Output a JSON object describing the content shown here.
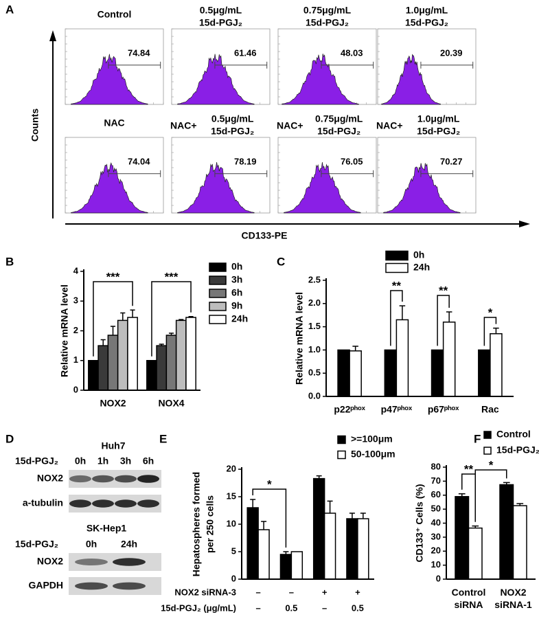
{
  "panel_A": {
    "label": "A",
    "y_axis_label": "Counts",
    "x_axis_label": "CD133-PE",
    "histograms": [
      {
        "title": [
          "Control"
        ],
        "value": 74.84
      },
      {
        "title": [
          "0.5μg/mL",
          "15d-PGJ₂"
        ],
        "value": 61.46
      },
      {
        "title": [
          "0.75μg/mL",
          "15d-PGJ₂"
        ],
        "value": 48.03
      },
      {
        "title": [
          "1.0μg/mL",
          "15d-PGJ₂"
        ],
        "value": 20.39
      },
      {
        "title": [
          "NAC"
        ],
        "value": 74.04
      },
      {
        "prefix": "NAC+",
        "title": [
          "0.5μg/mL",
          "15d-PGJ₂"
        ],
        "value": 78.19
      },
      {
        "prefix": "NAC+",
        "title": [
          "0.75μg/mL",
          "15d-PGJ₂"
        ],
        "value": 76.05
      },
      {
        "prefix": "NAC+",
        "title": [
          "1.0μg/mL",
          "15d-PGJ₂"
        ],
        "value": 70.27
      }
    ]
  },
  "panel_D": {
    "label": "D",
    "blots": [
      {
        "cell_line": "Huh7",
        "treatment": "15d-PGJ₂",
        "times": [
          "0h",
          "1h",
          "3h",
          "6h"
        ],
        "rows": [
          "NOX2",
          "a-tubulin"
        ]
      },
      {
        "cell_line": "SK-Hep1",
        "treatment": "15d-PGJ₂",
        "times": [
          "0h",
          "24h"
        ],
        "rows": [
          "NOX2",
          "GAPDH"
        ]
      }
    ]
  },
  "chart_data": [
    {
      "type": "bar",
      "panel_label": "B",
      "y_label": "Relative mRNA level",
      "categories": [
        "NOX2",
        "NOX4"
      ],
      "series": [
        {
          "name": "0h",
          "color": "#000000",
          "values": [
            1,
            1
          ],
          "errors": [
            0,
            0
          ]
        },
        {
          "name": "3h",
          "color": "#3a3a3a",
          "values": [
            1.5,
            1.5
          ],
          "errors": [
            0.2,
            0.05
          ]
        },
        {
          "name": "6h",
          "color": "#777777",
          "values": [
            1.85,
            1.85
          ],
          "errors": [
            0.3,
            0.07
          ]
        },
        {
          "name": "9h",
          "color": "#bdbdbd",
          "values": [
            2.35,
            2.35
          ],
          "errors": [
            0.25,
            0.03
          ]
        },
        {
          "name": "24h",
          "color": "#ffffff",
          "values": [
            2.45,
            2.45
          ],
          "errors": [
            0.25,
            0.03
          ]
        }
      ],
      "ylim": [
        0,
        4
      ],
      "yticks": [
        0,
        1,
        2,
        3,
        4
      ],
      "annotations": [
        "***",
        "***"
      ]
    },
    {
      "type": "bar",
      "panel_label": "C",
      "y_label": "Relative mRNA level",
      "categories": [
        "p22ᵖʰᵒˣ",
        "p47ᵖʰᵒˣ",
        "p67ᵖʰᵒˣ",
        "Rac"
      ],
      "series": [
        {
          "name": "0h",
          "color": "#000000",
          "values": [
            1,
            1,
            1,
            1
          ],
          "errors": [
            0,
            0,
            0,
            0
          ]
        },
        {
          "name": "24h",
          "color": "#ffffff",
          "values": [
            0.98,
            1.65,
            1.6,
            1.35
          ],
          "errors": [
            0.1,
            0.3,
            0.22,
            0.12
          ]
        }
      ],
      "ylim": [
        0,
        2.5
      ],
      "yticks": [
        {
          "value": 0,
          "label": "0.0"
        },
        0.5,
        {
          "value": 1,
          "label": "1.0"
        },
        1.5,
        {
          "value": 2,
          "label": "2.0"
        },
        2.5
      ],
      "annotations": [
        "**",
        "**",
        "*"
      ]
    },
    {
      "type": "bar",
      "panel_label": "E",
      "y_label": [
        "Hepatospheres formed",
        "per 250 cells"
      ],
      "series": [
        {
          "name": ">=100μm",
          "color": "#000000",
          "values": [
            13,
            4.5,
            18.3,
            11
          ],
          "errors": [
            1.5,
            0.5,
            0.5,
            1
          ]
        },
        {
          "name": "50-100μm",
          "color": "#ffffff",
          "values": [
            9,
            5,
            12,
            11
          ],
          "errors": [
            1.5,
            0,
            2.2,
            1
          ]
        }
      ],
      "ylim": [
        0,
        20
      ],
      "yticks": [
        0,
        5,
        10,
        15,
        20
      ],
      "annotations": [
        "*"
      ],
      "conditions": [
        {
          "label": "NOX2 siRNA-3",
          "values": [
            "–",
            "–",
            "+",
            "+"
          ]
        },
        {
          "label": "15d-PGJ₂ (μg/mL)",
          "values": [
            "–",
            "0.5",
            "–",
            "0.5"
          ]
        }
      ]
    },
    {
      "type": "bar",
      "panel_label": "F",
      "y_label": "CD133⁺ Cells (%)",
      "categories": [
        "Control siRNA",
        "NOX2 siRNA-1"
      ],
      "series": [
        {
          "name": "Control",
          "color": "#000000",
          "values": [
            59,
            67.5
          ],
          "errors": [
            2,
            1.5
          ]
        },
        {
          "name": "15d-PGJ₂",
          "color": "#ffffff",
          "values": [
            36.5,
            52.5
          ],
          "errors": [
            1.5,
            1.5
          ]
        }
      ],
      "ylim": [
        0,
        80
      ],
      "yticks": [
        0,
        10,
        20,
        30,
        40,
        50,
        60,
        70,
        80
      ],
      "annotations": [
        "**",
        "*"
      ]
    }
  ]
}
